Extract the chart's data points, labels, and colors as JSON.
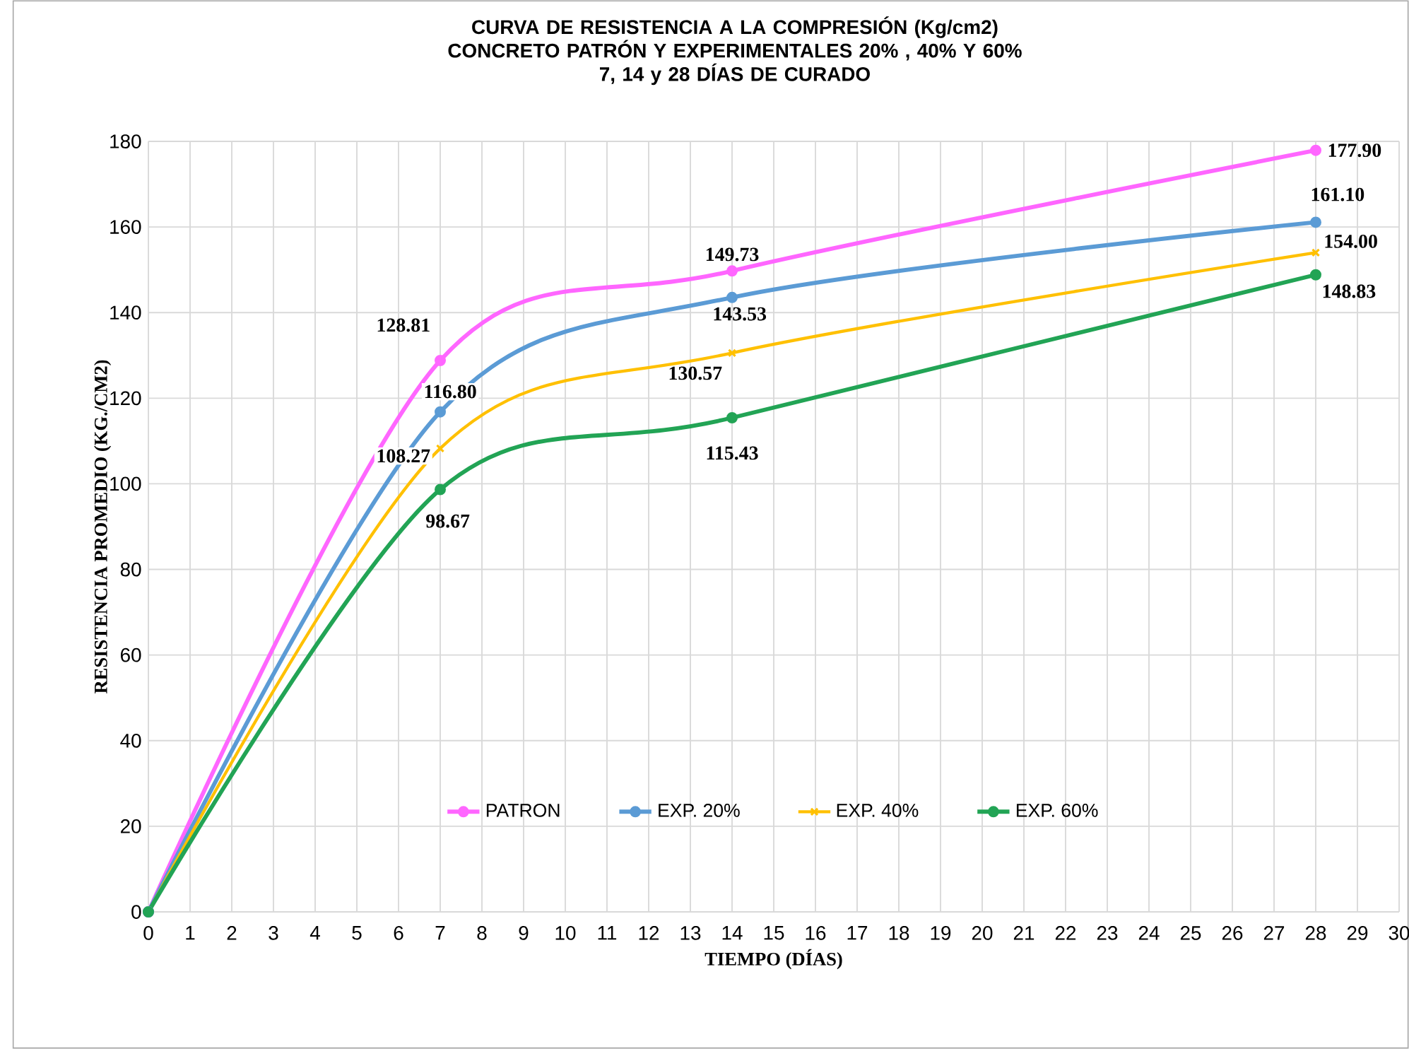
{
  "chart_data": {
    "type": "line",
    "title": "CURVA DE RESISTENCIA  A LA COMPRESIÓN  (Kg/cm2)",
    "subtitle": "CONCRETO  PATRÓN  Y EXPERIMENTALES  20% , 40% Y 60%\n7, 14 y 28 DÍAS DE CURADO",
    "xlabel": "TIEMPO  (DÍAS)",
    "ylabel": "RESISTENCIA PROMEDIO  (KG./CM2)",
    "x": [
      0,
      7,
      14,
      28
    ],
    "series": [
      {
        "name": "PATRON",
        "color": "#ff66ff",
        "marker": "circle",
        "values": [
          0,
          128.81,
          149.73,
          177.9
        ],
        "value_labels": [
          null,
          "128.81",
          "149.73",
          "177.90"
        ]
      },
      {
        "name": "EXP. 20%",
        "color": "#5b9bd5",
        "marker": "circle",
        "values": [
          0,
          116.8,
          143.53,
          161.1
        ],
        "value_labels": [
          null,
          "116.80",
          "143.53",
          "161.10"
        ]
      },
      {
        "name": "EXP. 40%",
        "color": "#ffc000",
        "marker": "cross",
        "values": [
          0,
          108.27,
          130.57,
          154.0
        ],
        "value_labels": [
          null,
          "108.27",
          "130.57",
          "154.00"
        ]
      },
      {
        "name": "EXP. 60%",
        "color": "#22a455",
        "marker": "circle",
        "values": [
          0,
          98.67,
          115.43,
          148.83
        ],
        "value_labels": [
          null,
          "98.67",
          "115.43",
          "148.83"
        ]
      }
    ],
    "xlim": [
      0,
      30
    ],
    "xticks": [
      0,
      1,
      2,
      3,
      4,
      5,
      6,
      7,
      8,
      9,
      10,
      11,
      12,
      13,
      14,
      15,
      16,
      17,
      18,
      19,
      20,
      21,
      22,
      23,
      24,
      25,
      26,
      27,
      28,
      29,
      30
    ],
    "ylim": [
      0,
      180
    ],
    "yticks": [
      0,
      20,
      40,
      60,
      80,
      100,
      120,
      140,
      160,
      180
    ],
    "grid": true,
    "legend": "bottom"
  }
}
